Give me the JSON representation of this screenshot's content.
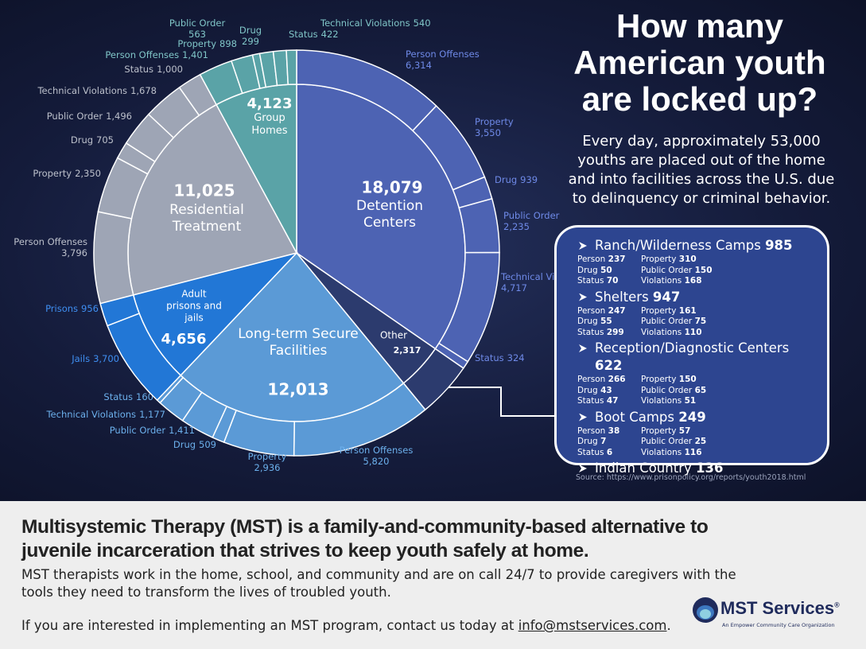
{
  "chart_data": {
    "type": "sunburst",
    "title": "How many American youth are locked up?",
    "subtitle": "Every day, approximately 53,000 youths are placed out of the home and into facilities across the U.S. due to delinquency or criminal behavior.",
    "source": "Source: https://www.prisonpolicy.org/reports/youth2018.html",
    "categories": [
      {
        "name": "Detention Centers",
        "value": 18079,
        "value_label": "18,079",
        "color": "#4d63b3",
        "label_color": "#6f8ae8",
        "children": [
          {
            "name": "Person Offenses",
            "value": 6314,
            "value_label": "6,314"
          },
          {
            "name": "Property",
            "value": 3550,
            "value_label": "3,550"
          },
          {
            "name": "Drug",
            "value": 939,
            "value_label": "939"
          },
          {
            "name": "Public Order",
            "value": 2235,
            "value_label": "2,235"
          },
          {
            "name": "Technical Violations",
            "value": 4717,
            "value_label": "4,717"
          },
          {
            "name": "Status",
            "value": 324,
            "value_label": "324"
          }
        ]
      },
      {
        "name": "Other",
        "value": 2317,
        "value_label": "2,317",
        "color": "#2c3b6e",
        "label_color": "#ffffff",
        "children": []
      },
      {
        "name": "Long-term Secure Facilities",
        "value": 12013,
        "value_label": "12,013",
        "color": "#5b9ad6",
        "label_color": "#6cb0ec",
        "children": [
          {
            "name": "Person Offenses",
            "value": 5820,
            "value_label": "5,820"
          },
          {
            "name": "Property",
            "value": 2936,
            "value_label": "2,936"
          },
          {
            "name": "Drug",
            "value": 509,
            "value_label": "509"
          },
          {
            "name": "Public Order",
            "value": 1411,
            "value_label": "1,411"
          },
          {
            "name": "Technical Violations",
            "value": 1177,
            "value_label": "1,177"
          },
          {
            "name": "Status",
            "value": 160,
            "value_label": "160"
          }
        ]
      },
      {
        "name": "Adult prisons and jails",
        "value": 4656,
        "value_label": "4,656",
        "color": "#2277d6",
        "label_color": "#3f8ff2",
        "children": [
          {
            "name": "Jails",
            "value": 3700,
            "value_label": "3,700"
          },
          {
            "name": "Prisons",
            "value": 956,
            "value_label": "956"
          }
        ]
      },
      {
        "name": "Residential Treatment",
        "value": 11025,
        "value_label": "11,025",
        "color": "#9ea5b5",
        "label_color": "#bcc0cb",
        "children": [
          {
            "name": "Person Offenses",
            "value": 3796,
            "value_label": "3,796"
          },
          {
            "name": "Property",
            "value": 2350,
            "value_label": "2,350"
          },
          {
            "name": "Drug",
            "value": 705,
            "value_label": "705"
          },
          {
            "name": "Public Order",
            "value": 1496,
            "value_label": "1,496"
          },
          {
            "name": "Technical Violations",
            "value": 1678,
            "value_label": "1,678"
          },
          {
            "name": "Status",
            "value": 1000,
            "value_label": "1,000"
          }
        ]
      },
      {
        "name": "Group Homes",
        "value": 4123,
        "value_label": "4,123",
        "color": "#5aa3a7",
        "label_color": "#80c6c8",
        "children": [
          {
            "name": "Person Offenses",
            "value": 1401,
            "value_label": "1,401"
          },
          {
            "name": "Property",
            "value": 898,
            "value_label": "898"
          },
          {
            "name": "Drug",
            "value": 299,
            "value_label": "299"
          },
          {
            "name": "Public Order",
            "value": 563,
            "value_label": "563"
          },
          {
            "name": "Technical Violations",
            "value": 540,
            "value_label": "540"
          },
          {
            "name": "Status",
            "value": 422,
            "value_label": "422"
          }
        ]
      }
    ]
  },
  "panel": {
    "facilities": [
      {
        "name": "Ranch/Wilderness Camps",
        "total": 985,
        "items": [
          {
            "label": "Person",
            "value": 237
          },
          {
            "label": "Property",
            "value": 310
          },
          {
            "label": "Drug",
            "value": 50
          },
          {
            "label": "Public Order",
            "value": 150
          },
          {
            "label": "Status",
            "value": 70
          },
          {
            "label": "Violations",
            "value": 168
          }
        ]
      },
      {
        "name": "Shelters",
        "total": 947,
        "items": [
          {
            "label": "Person",
            "value": 247
          },
          {
            "label": "Property",
            "value": 161
          },
          {
            "label": "Drug",
            "value": 55
          },
          {
            "label": "Public Order",
            "value": 75
          },
          {
            "label": "Status",
            "value": 299
          },
          {
            "label": "Violations",
            "value": 110
          }
        ]
      },
      {
        "name": "Reception/Diagnostic Centers",
        "total": 622,
        "items": [
          {
            "label": "Person",
            "value": 266
          },
          {
            "label": "Property",
            "value": 150
          },
          {
            "label": "Drug",
            "value": 43
          },
          {
            "label": "Public Order",
            "value": 65
          },
          {
            "label": "Status",
            "value": 47
          },
          {
            "label": "Violations",
            "value": 51
          }
        ]
      },
      {
        "name": "Boot Camps",
        "total": 249,
        "items": [
          {
            "label": "Person",
            "value": 38
          },
          {
            "label": "Property",
            "value": 57
          },
          {
            "label": "Drug",
            "value": 7
          },
          {
            "label": "Public Order",
            "value": 25
          },
          {
            "label": "Status",
            "value": 6
          },
          {
            "label": "Violations",
            "value": 116
          }
        ]
      },
      {
        "name": "Indian Country",
        "total": 136,
        "items": []
      }
    ]
  },
  "footer": {
    "headline": "Multisystemic Therapy (MST) is a family-and-community-based alternative to juvenile incarceration that strives to keep youth safely at home.",
    "body": "MST therapists work in the home, school, and community and are on call 24/7 to provide caregivers with the tools they need to transform the lives of troubled youth.",
    "contact": "If you are interested in implementing an MST program, contact us today at",
    "email": "info@mstservices.com",
    "contact_end": ".",
    "logo": "MST Services",
    "logo_mark": "®",
    "tagline": "An Empower Community Care Organization"
  }
}
